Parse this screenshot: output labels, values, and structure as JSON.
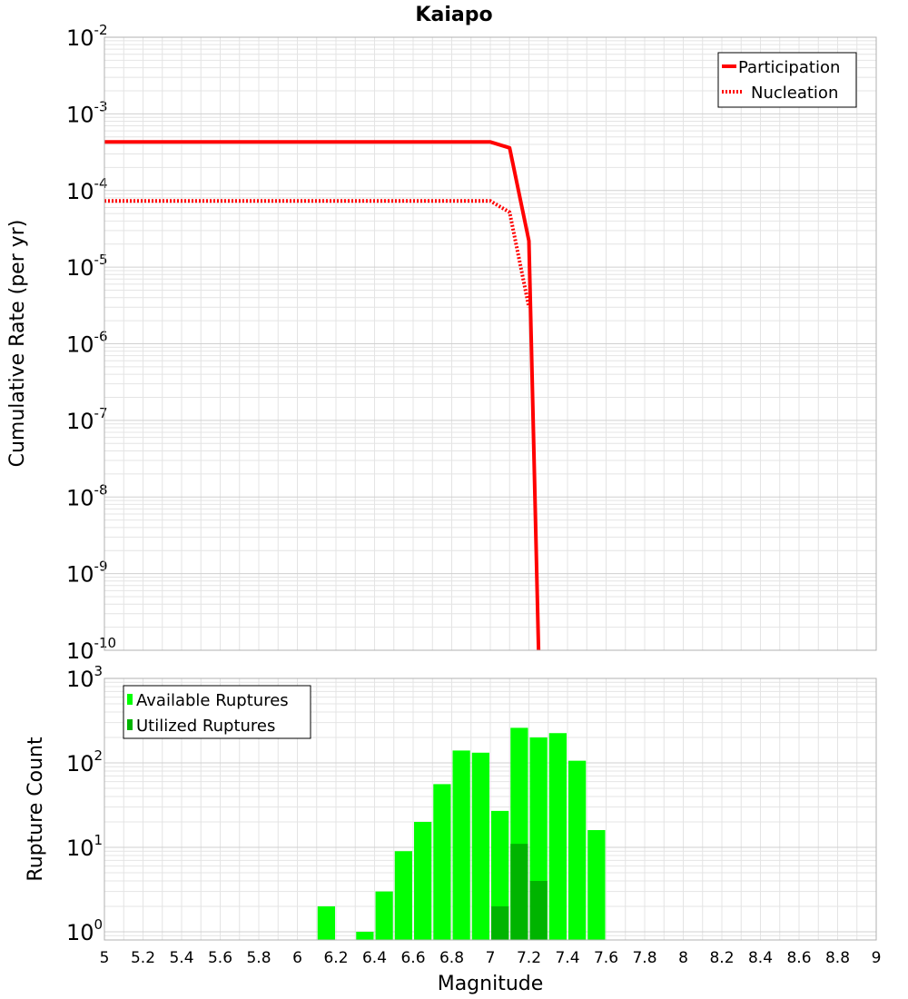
{
  "colors": {
    "participation": "#ff0000",
    "nucleation": "#ff0000",
    "available": "#00ff00",
    "utilized": "#00b400",
    "grid": "#e4e4e4",
    "frame": "#b0b0b0"
  },
  "chart_data": [
    {
      "type": "line",
      "title": "Kaiapo",
      "xlabel": "",
      "ylabel": "Cumulative Rate (per yr)",
      "xlim": [
        5,
        9
      ],
      "ylim_exponent": [
        -10,
        -2
      ],
      "yscale": "log",
      "tick_exponents": [
        "-10",
        "-9",
        "-8",
        "-7",
        "-6",
        "-5",
        "-4",
        "-3",
        "-2"
      ],
      "legend_position": "top-right",
      "series": [
        {
          "name": "Participation",
          "style": "solid",
          "points": [
            [
              5.0,
              0.00043
            ],
            [
              5.5,
              0.00043
            ],
            [
              6.0,
              0.00043
            ],
            [
              6.5,
              0.00043
            ],
            [
              7.0,
              0.00043
            ],
            [
              7.1,
              0.00036
            ],
            [
              7.2,
              2.2e-05
            ],
            [
              7.25,
              1e-10
            ]
          ]
        },
        {
          "name": "Nucleation",
          "style": "dotted",
          "points": [
            [
              5.0,
              7.3e-05
            ],
            [
              5.5,
              7.3e-05
            ],
            [
              6.0,
              7.3e-05
            ],
            [
              6.5,
              7.3e-05
            ],
            [
              7.0,
              7.3e-05
            ],
            [
              7.1,
              5.2e-05
            ],
            [
              7.2,
              3e-06
            ]
          ]
        }
      ]
    },
    {
      "type": "bar",
      "title": "",
      "xlabel": "Magnitude",
      "ylabel": "Rupture Count",
      "xlim": [
        5,
        9
      ],
      "yscale": "log",
      "ylim": [
        0.8,
        1000
      ],
      "tick_exponents": [
        "0",
        "1",
        "2",
        "3"
      ],
      "x_tick_labels": [
        "5",
        "5.2",
        "5.4",
        "5.6",
        "5.8",
        "6",
        "6.2",
        "6.4",
        "6.6",
        "6.8",
        "7",
        "7.2",
        "7.4",
        "7.6",
        "7.8",
        "8",
        "8.2",
        "8.4",
        "8.6",
        "8.8",
        "9"
      ],
      "bin_width": 0.1,
      "legend_position": "top-left",
      "series": [
        {
          "name": "Available Ruptures",
          "bins": [
            6.15,
            6.35,
            6.45,
            6.55,
            6.65,
            6.75,
            6.85,
            6.95,
            7.05,
            7.15,
            7.25,
            7.35,
            7.45,
            7.55
          ],
          "values": [
            2,
            1,
            3,
            9,
            20,
            56,
            140,
            132,
            27,
            260,
            200,
            225,
            106,
            16
          ]
        },
        {
          "name": "Utilized Ruptures",
          "bins": [
            7.05,
            7.15,
            7.25
          ],
          "values": [
            2,
            11,
            4
          ]
        }
      ]
    }
  ]
}
